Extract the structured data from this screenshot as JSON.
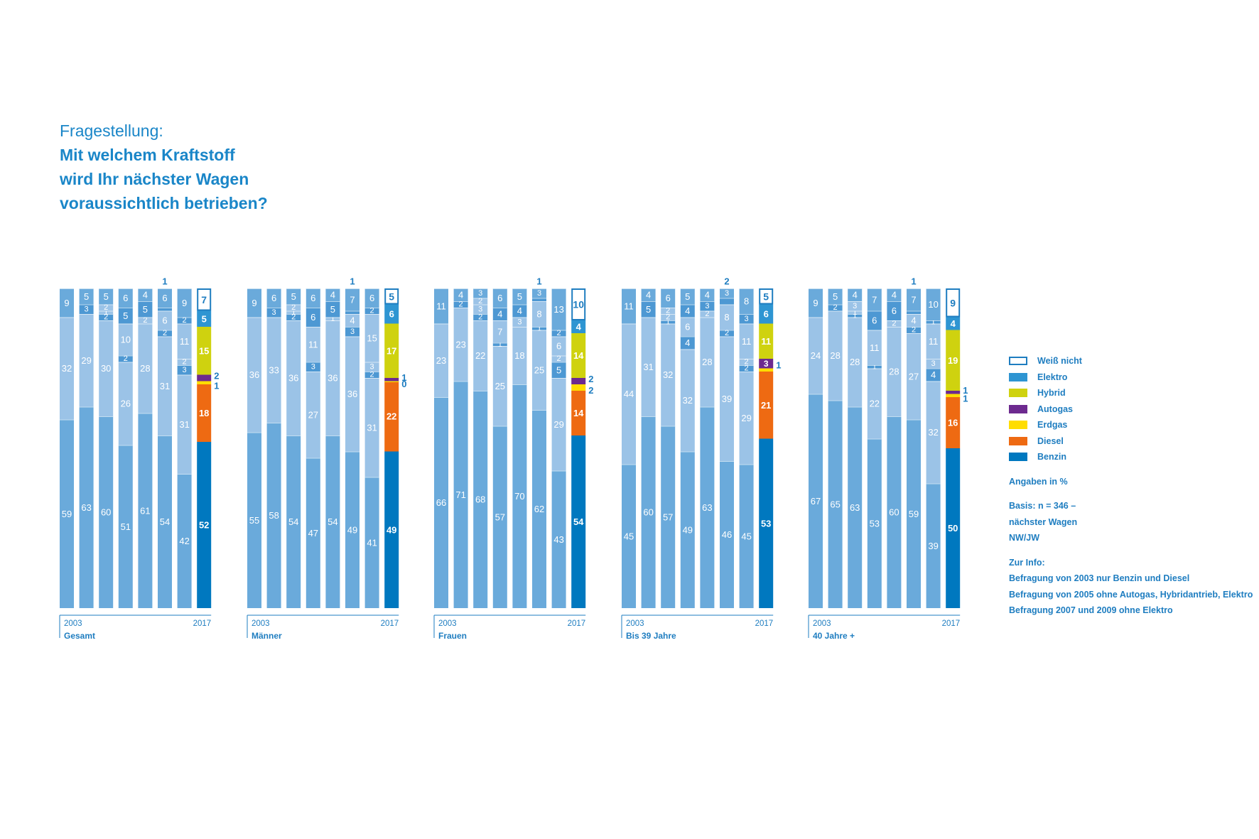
{
  "question": {
    "label": "Fragestellung:",
    "lines": [
      "Mit welchem Kraftstoff",
      "wird Ihr nächster Wagen",
      "voraussichtlich betrieben?"
    ]
  },
  "colors": {
    "weiss_nicht": "#ffffff",
    "elektro": "#2e95d2",
    "hybrid": "#cfd20f",
    "autogas": "#6d2a8f",
    "erdgas": "#ffdd00",
    "diesel": "#ee6a12",
    "benzin": "#0078bf",
    "old_light": "#9bc3e7",
    "old_mid": "#6aaadb",
    "old_dark": "#4d98d3",
    "text_blue": "#1e7dc0",
    "frame_blue": "#1e7dc0"
  },
  "legend": {
    "items": [
      {
        "key": "weiss_nicht",
        "label": "Weiß nicht"
      },
      {
        "key": "elektro",
        "label": "Elektro"
      },
      {
        "key": "hybrid",
        "label": "Hybrid"
      },
      {
        "key": "autogas",
        "label": "Autogas"
      },
      {
        "key": "erdgas",
        "label": "Erdgas"
      },
      {
        "key": "diesel",
        "label": "Diesel"
      },
      {
        "key": "benzin",
        "label": "Benzin"
      }
    ],
    "unit": "Angaben in %",
    "basis": [
      "Basis: n = 346 –",
      "nächster Wagen",
      "NW/JW"
    ],
    "info_title": "Zur Info:",
    "info_lines": [
      "Befragung von 2003 nur Benzin und Diesel",
      "Befragung von 2005 ohne Autogas, Hybridantrieb, Elektro",
      "Befragung 2007 und 2009 ohne Elektro"
    ]
  },
  "chart_data": {
    "type": "bar",
    "stacked": true,
    "unit": "%",
    "start_label": "2003",
    "end_label": "2017",
    "groups": [
      {
        "name": "Gesamt",
        "top_note": "1",
        "old_bars": [
          {
            "benzin": 59,
            "diesel": 32,
            "weiss_nicht": 9,
            "labels": [
              "59",
              "32",
              "9"
            ]
          },
          {
            "benzin": 63,
            "diesel": 29,
            "erdgas": 3,
            "weiss_nicht": 5,
            "labels": [
              "63",
              "29",
              "3",
              "5"
            ]
          },
          {
            "benzin": 60,
            "diesel": 30,
            "erdgas": 2,
            "autogas": 1,
            "hybrid": 2,
            "weiss_nicht": 5,
            "labels": [
              "60",
              "30",
              "2",
              "1",
              "2",
              "5"
            ]
          },
          {
            "benzin": 51,
            "diesel": 26,
            "erdgas": 2,
            "hybrid": 10,
            "elektro": 5,
            "weiss_nicht": 6,
            "labels": [
              "51",
              "26",
              "2",
              "10",
              "5",
              "6"
            ]
          },
          {
            "benzin": 61,
            "diesel": 28,
            "hybrid": 2,
            "elektro": 5,
            "weiss_nicht": 4,
            "labels": [
              "61",
              "28",
              "2",
              "5",
              "4"
            ]
          },
          {
            "benzin": 54,
            "diesel": 31,
            "erdgas": 2,
            "hybrid": 6,
            "elektro": 1,
            "weiss_nicht": 6,
            "labels": [
              "54",
              "31",
              "2",
              "6",
              "",
              "6"
            ]
          },
          {
            "benzin": 42,
            "diesel": 31,
            "erdgas": 3,
            "autogas": 2,
            "hybrid": 11,
            "elektro": 2,
            "weiss_nicht": 9,
            "labels": [
              "42",
              "31",
              "3",
              "2",
              "11",
              "2",
              "9"
            ]
          }
        ],
        "last": {
          "benzin": 52,
          "diesel": 18,
          "erdgas": 1,
          "autogas": 2,
          "hybrid": 15,
          "elektro": 5,
          "weiss_nicht": 7
        }
      },
      {
        "name": "Männer",
        "top_note": "1",
        "old_bars": [
          {
            "benzin": 55,
            "diesel": 36,
            "weiss_nicht": 9,
            "labels": [
              "55",
              "36",
              "9"
            ]
          },
          {
            "benzin": 58,
            "diesel": 33,
            "erdgas": 3,
            "weiss_nicht": 6,
            "labels": [
              "58",
              "33",
              "3",
              "6"
            ]
          },
          {
            "benzin": 54,
            "diesel": 36,
            "erdgas": 2,
            "autogas": 1,
            "hybrid": 2,
            "weiss_nicht": 5,
            "labels": [
              "54",
              "36",
              "2",
              "1",
              "2",
              "5"
            ]
          },
          {
            "benzin": 47,
            "diesel": 27,
            "erdgas": 3,
            "hybrid": 11,
            "elektro": 6,
            "weiss_nicht": 6,
            "labels": [
              "47",
              "27",
              "3",
              "11",
              "6",
              "6"
            ]
          },
          {
            "benzin": 54,
            "diesel": 36,
            "hybrid": 1,
            "elektro": 5,
            "weiss_nicht": 4,
            "labels": [
              "54",
              "36",
              "1",
              "5",
              "4"
            ]
          },
          {
            "benzin": 49,
            "diesel": 36,
            "erdgas": 3,
            "hybrid": 4,
            "elektro": 1,
            "weiss_nicht": 7,
            "labels": [
              "49",
              "36",
              "3",
              "4",
              "",
              "7"
            ]
          },
          {
            "benzin": 41,
            "diesel": 31,
            "erdgas": 2,
            "autogas": 3,
            "hybrid": 15,
            "elektro": 2,
            "weiss_nicht": 6,
            "labels": [
              "41",
              "31",
              "2",
              "3",
              "15",
              "2",
              "6"
            ]
          }
        ],
        "last": {
          "benzin": 49,
          "diesel": 22,
          "erdgas": 0,
          "autogas": 1,
          "hybrid": 17,
          "elektro": 6,
          "weiss_nicht": 5
        }
      },
      {
        "name": "Frauen",
        "top_note": "1",
        "old_bars": [
          {
            "benzin": 66,
            "diesel": 23,
            "weiss_nicht": 11,
            "labels": [
              "66",
              "23",
              "11"
            ]
          },
          {
            "benzin": 71,
            "diesel": 23,
            "erdgas": 2,
            "weiss_nicht": 4,
            "labels": [
              "71",
              "23",
              "2",
              "4"
            ]
          },
          {
            "benzin": 68,
            "diesel": 22,
            "erdgas": 2,
            "autogas": 3,
            "hybrid": 2,
            "weiss_nicht": 3,
            "labels": [
              "68",
              "22",
              "2",
              "3",
              "2",
              "3"
            ]
          },
          {
            "benzin": 57,
            "diesel": 25,
            "erdgas": 1,
            "hybrid": 7,
            "elektro": 4,
            "weiss_nicht": 6,
            "labels": [
              "57",
              "25",
              "1",
              "7",
              "4",
              "6"
            ]
          },
          {
            "benzin": 70,
            "diesel": 18,
            "hybrid": 3,
            "elektro": 4,
            "weiss_nicht": 5,
            "labels": [
              "70",
              "18",
              "3",
              "4",
              "5"
            ]
          },
          {
            "benzin": 62,
            "diesel": 25,
            "erdgas": 1,
            "hybrid": 8,
            "elektro": 1,
            "weiss_nicht": 3,
            "labels": [
              "62",
              "25",
              "1",
              "8",
              "",
              "3"
            ]
          },
          {
            "benzin": 43,
            "diesel": 29,
            "erdgas": 5,
            "autogas": 2,
            "hybrid": 6,
            "elektro": 2,
            "weiss_nicht": 13,
            "labels": [
              "43",
              "29",
              "5",
              "2",
              "6",
              "2",
              "13"
            ]
          }
        ],
        "last": {
          "benzin": 54,
          "diesel": 14,
          "erdgas": 2,
          "autogas": 2,
          "hybrid": 14,
          "elektro": 4,
          "weiss_nicht": 10
        }
      },
      {
        "name": "Bis 39 Jahre",
        "top_note": "2",
        "old_bars": [
          {
            "benzin": 45,
            "diesel": 44,
            "weiss_nicht": 11,
            "labels": [
              "45",
              "44",
              "11"
            ]
          },
          {
            "benzin": 60,
            "diesel": 31,
            "erdgas": 5,
            "weiss_nicht": 4,
            "labels": [
              "60",
              "31",
              "5",
              "4"
            ]
          },
          {
            "benzin": 57,
            "diesel": 32,
            "erdgas": 1,
            "autogas": 2,
            "hybrid": 2,
            "weiss_nicht": 6,
            "labels": [
              "57",
              "32",
              "1",
              "2",
              "2",
              "6"
            ]
          },
          {
            "benzin": 49,
            "diesel": 32,
            "erdgas": 4,
            "hybrid": 6,
            "elektro": 4,
            "weiss_nicht": 5,
            "labels": [
              "49",
              "32",
              "4",
              "6",
              "4",
              "5"
            ]
          },
          {
            "benzin": 63,
            "diesel": 28,
            "hybrid": 2,
            "elektro": 3,
            "weiss_nicht": 4,
            "labels": [
              "63",
              "28",
              "2",
              "3",
              "4"
            ]
          },
          {
            "benzin": 46,
            "diesel": 39,
            "erdgas": 2,
            "hybrid": 8,
            "elektro": 2,
            "weiss_nicht": 3,
            "labels": [
              "46",
              "39",
              "2",
              "8",
              "",
              "3"
            ]
          },
          {
            "benzin": 45,
            "diesel": 29,
            "erdgas": 2,
            "autogas": 2,
            "hybrid": 11,
            "elektro": 3,
            "weiss_nicht": 8,
            "labels": [
              "45",
              "29",
              "2",
              "2",
              "11",
              "3",
              "8"
            ]
          }
        ],
        "last": {
          "benzin": 53,
          "diesel": 21,
          "erdgas": 1,
          "autogas": 3,
          "hybrid": 11,
          "elektro": 6,
          "weiss_nicht": 5
        }
      },
      {
        "name": "40 Jahre +",
        "top_note": "1",
        "old_bars": [
          {
            "benzin": 67,
            "diesel": 24,
            "weiss_nicht": 9,
            "labels": [
              "67",
              "24",
              "9"
            ]
          },
          {
            "benzin": 65,
            "diesel": 28,
            "erdgas": 2,
            "weiss_nicht": 5,
            "labels": [
              "65",
              "28",
              "2",
              "5"
            ]
          },
          {
            "benzin": 63,
            "diesel": 28,
            "erdgas": 1,
            "autogas": 1,
            "hybrid": 3,
            "weiss_nicht": 4,
            "labels": [
              "63",
              "28",
              "1",
              "1",
              "3",
              "4"
            ]
          },
          {
            "benzin": 53,
            "diesel": 22,
            "erdgas": 1,
            "hybrid": 11,
            "elektro": 6,
            "weiss_nicht": 7,
            "labels": [
              "53",
              "22",
              "1",
              "11",
              "6",
              "7"
            ]
          },
          {
            "benzin": 60,
            "diesel": 28,
            "hybrid": 2,
            "elektro": 6,
            "weiss_nicht": 4,
            "labels": [
              "60",
              "28",
              "2",
              "6",
              "4"
            ]
          },
          {
            "benzin": 59,
            "diesel": 27,
            "erdgas": 2,
            "hybrid": 4,
            "elektro": 1,
            "weiss_nicht": 7,
            "labels": [
              "59",
              "27",
              "2",
              "4",
              "",
              "7"
            ]
          },
          {
            "benzin": 39,
            "diesel": 32,
            "erdgas": 4,
            "autogas": 3,
            "hybrid": 11,
            "elektro": 1,
            "weiss_nicht": 10,
            "labels": [
              "39",
              "32",
              "4",
              "3",
              "11",
              "1",
              "10"
            ]
          }
        ],
        "last": {
          "benzin": 50,
          "diesel": 16,
          "erdgas": 1,
          "autogas": 1,
          "hybrid": 19,
          "elektro": 4,
          "weiss_nicht": 9
        }
      }
    ]
  }
}
